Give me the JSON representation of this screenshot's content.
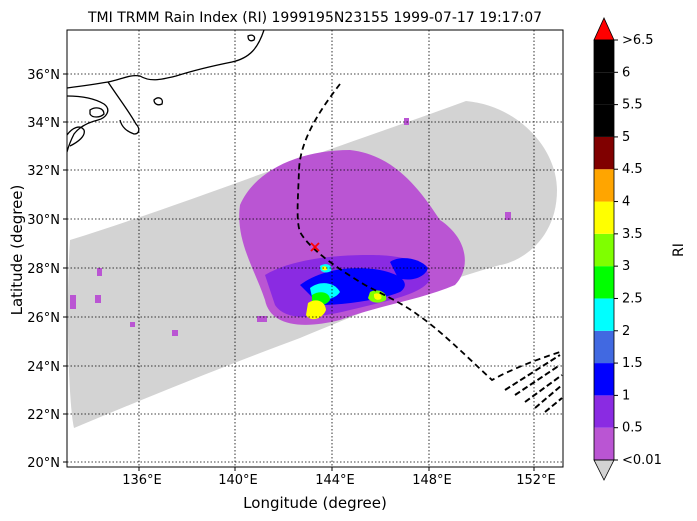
{
  "title": "TMI TRMM Rain Index (RI) 1999195N23155 1999-07-17 19:17:07",
  "xlabel": "Longitude (degree)",
  "ylabel": "Latitude (degree)",
  "x_ticks": [
    "136°E",
    "140°E",
    "144°E",
    "148°E",
    "152°E"
  ],
  "y_ticks": [
    "20°N",
    "22°N",
    "24°N",
    "26°N",
    "28°N",
    "30°N",
    "32°N",
    "34°N",
    "36°N"
  ],
  "map_extent": {
    "lon": [
      132.7,
      153.3
    ],
    "lat": [
      19.8,
      37.8
    ]
  },
  "colorbar": {
    "label": "RI",
    "tick_labels": [
      "<0.01",
      "0.5",
      "1",
      "1.5",
      "2",
      "2.5",
      "3",
      "3.5",
      "4",
      "4.5",
      "5",
      "5.5",
      "6",
      ">6.5"
    ],
    "colors": [
      "#ba55d3",
      "#8a2be2",
      "#0000ff",
      "#4169e1",
      "#00ffff",
      "#00ff00",
      "#7fff00",
      "#ffff00",
      "#ffa500",
      "#800000",
      "#000000",
      "#000000",
      "#000000"
    ],
    "under_color": "#d3d3d3",
    "over_color": "#ff0000"
  },
  "swath_color": "#d3d3d3",
  "storm_center_marker": "red-x"
}
